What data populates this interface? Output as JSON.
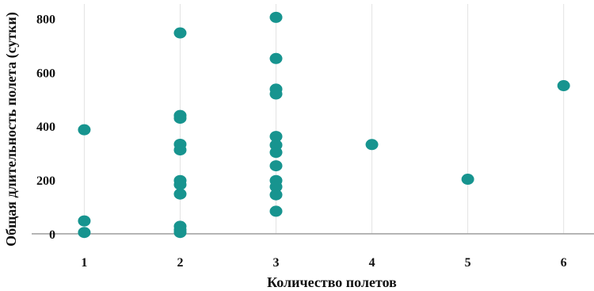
{
  "chart_data": {
    "type": "scatter",
    "title": "",
    "xlabel": "Количество полетов",
    "ylabel": "Общая длительность полета (сутки)",
    "x_ticks": [
      1,
      2,
      3,
      4,
      5,
      6
    ],
    "y_ticks": [
      0,
      200,
      400,
      600,
      800
    ],
    "xlim": [
      0.6,
      6.3
    ],
    "ylim": [
      -15,
      840
    ],
    "grid": "vertical",
    "point_color": "#17948f",
    "axis_line_color": "#9e9e9e",
    "grid_color": "#e3e3e3",
    "series": [
      {
        "points": [
          {
            "x": 1,
            "y": 387
          },
          {
            "x": 1,
            "y": 48
          },
          {
            "x": 1,
            "y": 5
          },
          {
            "x": 2,
            "y": 747
          },
          {
            "x": 2,
            "y": 440
          },
          {
            "x": 2,
            "y": 430
          },
          {
            "x": 2,
            "y": 333
          },
          {
            "x": 2,
            "y": 312
          },
          {
            "x": 2,
            "y": 198
          },
          {
            "x": 2,
            "y": 183
          },
          {
            "x": 2,
            "y": 148
          },
          {
            "x": 2,
            "y": 28
          },
          {
            "x": 2,
            "y": 15
          },
          {
            "x": 2,
            "y": 5
          },
          {
            "x": 3,
            "y": 805
          },
          {
            "x": 3,
            "y": 652
          },
          {
            "x": 3,
            "y": 538
          },
          {
            "x": 3,
            "y": 520
          },
          {
            "x": 3,
            "y": 362
          },
          {
            "x": 3,
            "y": 330
          },
          {
            "x": 3,
            "y": 303
          },
          {
            "x": 3,
            "y": 253
          },
          {
            "x": 3,
            "y": 198
          },
          {
            "x": 3,
            "y": 175
          },
          {
            "x": 3,
            "y": 145
          },
          {
            "x": 3,
            "y": 84
          },
          {
            "x": 4,
            "y": 332
          },
          {
            "x": 5,
            "y": 203
          },
          {
            "x": 6,
            "y": 551
          }
        ]
      }
    ]
  }
}
